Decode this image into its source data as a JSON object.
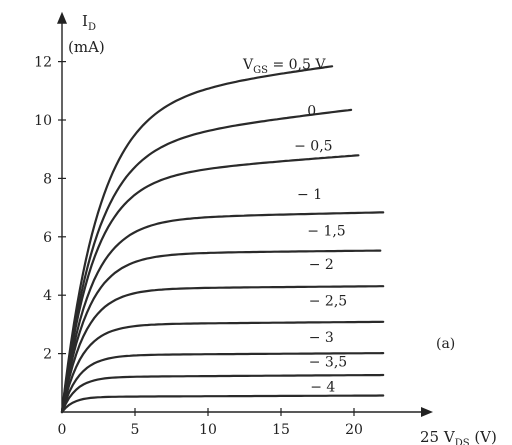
{
  "chart_data": {
    "type": "line",
    "title": "",
    "x_axis": {
      "label_main": "V",
      "label_sub": "DS",
      "label_unit": "(V)",
      "label_prefix": "25",
      "ticks": [
        0,
        5,
        10,
        15,
        20
      ],
      "tick_labels": [
        "0",
        "5",
        "10",
        "15",
        "20"
      ],
      "range": [
        0,
        25
      ]
    },
    "y_axis": {
      "label_main": "I",
      "label_sub": "D",
      "label_unit": "(mA)",
      "ticks": [
        2,
        4,
        6,
        8,
        10,
        12
      ],
      "tick_labels": [
        "2",
        "4",
        "6",
        "8",
        "10",
        "12"
      ],
      "range": [
        0,
        13.5
      ]
    },
    "annotation": "(a)",
    "grid": false,
    "series": [
      {
        "name": "0,5 V",
        "label_prefix": "V",
        "label_sub": "GS",
        "label_value": " = 0,5 V",
        "isat": 10.8,
        "xmax": 18.5,
        "slope": 0.06,
        "vk": 6.5,
        "label_x": 12.4,
        "label_y": 11.75
      },
      {
        "name": "0",
        "label_text": "0",
        "isat": 9.3,
        "xmax": 19.8,
        "slope": 0.055,
        "vk": 6.0,
        "label_x": 16.8,
        "label_y": 10.15
      },
      {
        "name": "- 0,5",
        "label_text": "− 0,5",
        "isat": 8.1,
        "xmax": 20.3,
        "slope": 0.035,
        "vk": 5.5,
        "label_x": 15.9,
        "label_y": 8.95
      },
      {
        "name": "- 1",
        "label_text": "− 1",
        "isat": 6.62,
        "xmax": 22.0,
        "slope": 0.01,
        "vk": 5.0,
        "label_x": 16.1,
        "label_y": 7.3
      },
      {
        "name": "- 1,5",
        "label_text": "− 1,5",
        "isat": 5.42,
        "xmax": 21.8,
        "slope": 0.005,
        "vk": 4.5,
        "label_x": 16.8,
        "label_y": 6.05
      },
      {
        "name": "- 2",
        "label_text": "− 2",
        "isat": 4.22,
        "xmax": 22.0,
        "slope": 0.004,
        "vk": 4.0,
        "label_x": 16.9,
        "label_y": 4.9
      },
      {
        "name": "- 2,5",
        "label_text": "− 2,5",
        "isat": 3.0,
        "xmax": 22.0,
        "slope": 0.004,
        "vk": 3.5,
        "label_x": 16.9,
        "label_y": 3.65
      },
      {
        "name": "- 3",
        "label_text": "− 3",
        "isat": 1.95,
        "xmax": 22.0,
        "slope": 0.003,
        "vk": 3.0,
        "label_x": 16.9,
        "label_y": 2.4
      },
      {
        "name": "- 3,5",
        "label_text": "− 3,5",
        "isat": 1.2,
        "xmax": 22.0,
        "slope": 0.003,
        "vk": 2.5,
        "label_x": 16.9,
        "label_y": 1.55
      },
      {
        "name": "- 4",
        "label_text": "− 4",
        "isat": 0.52,
        "xmax": 22.0,
        "slope": 0.002,
        "vk": 2.0,
        "label_x": 17.0,
        "label_y": 0.7
      }
    ]
  }
}
